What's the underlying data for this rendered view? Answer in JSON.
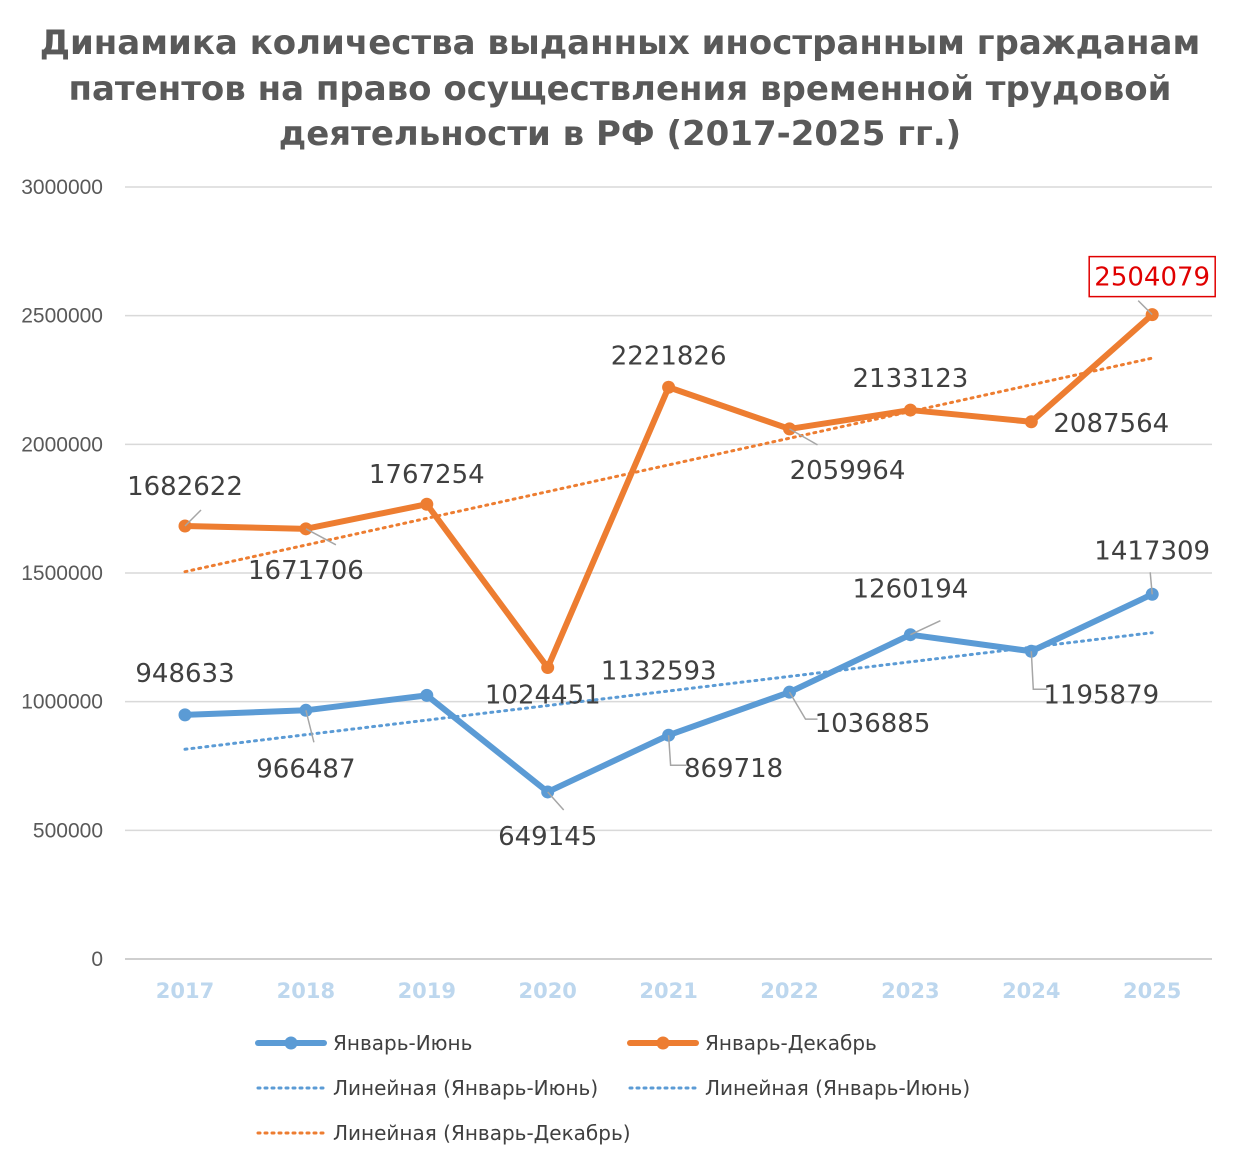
{
  "chart_data": {
    "type": "line",
    "title": [
      "Динамика количества выданных иностранным гражданам",
      "патентов на право осуществления временной трудовой",
      "деятельности в РФ (2017-2025 гг.)"
    ],
    "categories": [
      "2017",
      "2018",
      "2019",
      "2020",
      "2021",
      "2022",
      "2023",
      "2024",
      "2025"
    ],
    "ylim": [
      0,
      3000000
    ],
    "yticks": [
      "0",
      "500000",
      "1000000",
      "1500000",
      "2000000",
      "2500000",
      "3000000"
    ],
    "ytick_values": [
      0,
      500000,
      1000000,
      1500000,
      2000000,
      2500000,
      3000000
    ],
    "grid": true,
    "legend_position": "bottom",
    "series": [
      {
        "name": "Январь-Июнь",
        "color": "#5b9bd5",
        "values": [
          948633,
          966487,
          1024451,
          649145,
          869718,
          1036885,
          1260194,
          1195879,
          1417309
        ],
        "labels": [
          "948633",
          "966487",
          "1024451",
          "649145",
          "869718",
          "1036885",
          "1260194",
          "1195879",
          "1417309"
        ]
      },
      {
        "name": "Январь-Декабрь",
        "color": "#ed7d31",
        "values": [
          1682622,
          1671706,
          1767254,
          1132593,
          2221826,
          2059964,
          2133123,
          2087564,
          2504079
        ],
        "labels": [
          "1682622",
          "1671706",
          "1767254",
          "1132593",
          "2221826",
          "2059964",
          "2133123",
          "2087564",
          "2504079"
        ],
        "highlight_label": "2504079",
        "highlight_color": "#e00000"
      }
    ],
    "trendlines": [
      {
        "name": "Линейная (Январь-Июнь)",
        "of": "Январь-Июнь",
        "color": "#5b9bd5",
        "start": 815000,
        "end": 1268000
      },
      {
        "name": "Линейная (Январь-Июнь)",
        "of": "Январь-Июнь",
        "color": "#5b9bd5"
      },
      {
        "name": "Линейная (Январь-Декабрь)",
        "of": "Январь-Декабрь",
        "color": "#ed7d31",
        "start": 1505000,
        "end": 2335000
      }
    ]
  }
}
